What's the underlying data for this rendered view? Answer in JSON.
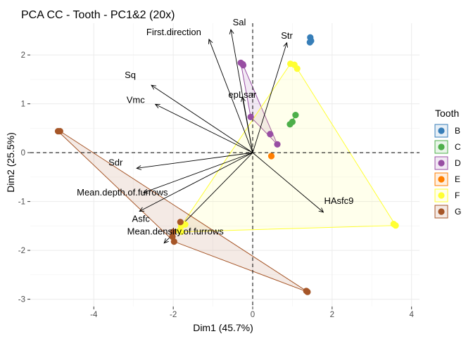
{
  "chart_data": {
    "type": "scatter",
    "title": "PCA CC - Tooth - PC1&2 (20x)",
    "xlabel": "Dim1 (45.7%)",
    "ylabel": "Dim2 (25.5%)",
    "xlim": [
      -5.6,
      4.2
    ],
    "ylim": [
      -3.15,
      2.65
    ],
    "xticks": [
      -4,
      -2,
      0,
      2,
      4
    ],
    "yticks": [
      -3,
      -2,
      -1,
      0,
      1,
      2
    ],
    "grid": true,
    "legend": {
      "title": "Tooth",
      "position": "right"
    },
    "groups": [
      {
        "name": "B",
        "color": "#377EB8",
        "fill": "#377EB8",
        "points": [
          [
            1.45,
            2.36
          ],
          [
            1.47,
            2.29
          ],
          [
            1.44,
            2.26
          ]
        ]
      },
      {
        "name": "C",
        "color": "#4DAF4A",
        "fill": "#4DAF4A",
        "points": [
          [
            1.08,
            0.77
          ],
          [
            1.0,
            0.63
          ],
          [
            0.94,
            0.58
          ]
        ]
      },
      {
        "name": "D",
        "color": "#984EA3",
        "fill": "#984EA3",
        "points": [
          [
            -0.3,
            1.84
          ],
          [
            -0.25,
            1.81
          ],
          [
            -0.24,
            1.79
          ],
          [
            -0.05,
            0.73
          ],
          [
            0.44,
            0.38
          ],
          [
            0.62,
            0.17
          ]
        ]
      },
      {
        "name": "E",
        "color": "#FF7F00",
        "fill": "#FF7F00",
        "points": [
          [
            0.47,
            -0.07
          ]
        ]
      },
      {
        "name": "F",
        "color": "#FFFF33",
        "fill": "#FFFF66",
        "points": [
          [
            0.95,
            1.82
          ],
          [
            1.05,
            1.8
          ],
          [
            1.12,
            1.72
          ],
          [
            3.55,
            -1.46
          ],
          [
            3.6,
            -1.49
          ],
          [
            -1.8,
            -1.5
          ],
          [
            -1.7,
            -1.47
          ],
          [
            -1.85,
            -1.6
          ],
          [
            -1.8,
            -1.62
          ]
        ]
      },
      {
        "name": "G",
        "color": "#A65628",
        "fill": "#A65628",
        "points": [
          [
            -4.9,
            0.44
          ],
          [
            -4.85,
            0.44
          ],
          [
            -1.82,
            -1.42
          ],
          [
            -2.0,
            -1.62
          ],
          [
            -2.02,
            -1.72
          ],
          [
            -1.98,
            -1.82
          ],
          [
            1.35,
            -2.83
          ],
          [
            1.38,
            -2.85
          ]
        ]
      }
    ],
    "variables": [
      {
        "name": "Sal",
        "x": -0.55,
        "y": 2.52
      },
      {
        "name": "Str",
        "x": 0.86,
        "y": 2.25
      },
      {
        "name": "First.direction",
        "x": -1.1,
        "y": 2.32
      },
      {
        "name": "Sq",
        "x": -2.55,
        "y": 1.38
      },
      {
        "name": "Vmc",
        "x": -2.45,
        "y": 0.99
      },
      {
        "name": "epLsar",
        "x": -0.26,
        "y": 1.14
      },
      {
        "name": "Sdr",
        "x": -2.92,
        "y": -0.32
      },
      {
        "name": "Mean.depth.of.furrows",
        "x": -2.75,
        "y": -0.82
      },
      {
        "name": "Asfc",
        "x": -2.85,
        "y": -1.2
      },
      {
        "name": "HAsfc9",
        "x": 1.78,
        "y": -1.22
      },
      {
        "name": "Mean.density.of.furrows",
        "x": -2.23,
        "y": -1.85
      }
    ]
  }
}
